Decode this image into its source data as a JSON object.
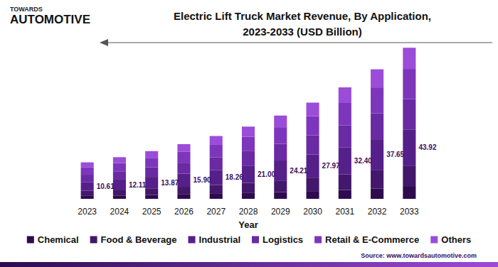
{
  "chart_data": {
    "type": "bar",
    "title": "Electric Lift Truck Market Revenue, By Application,\n2023-2033 (USD Billion)",
    "logo": [
      "TOWARDS",
      "AUTOMOTIVE"
    ],
    "source": "Source: www.towardsautomotive.com",
    "x_label": "Year",
    "categories": [
      "2023",
      "2024",
      "2025",
      "2026",
      "2027",
      "2028",
      "2029",
      "2030",
      "2031",
      "2032",
      "2033"
    ],
    "series": [
      {
        "name": "Chemical",
        "color": "#2d0b4e",
        "values": [
          0.85,
          0.97,
          1.11,
          1.27,
          1.46,
          1.68,
          1.94,
          2.24,
          2.59,
          3.01,
          3.51
        ]
      },
      {
        "name": "Food & Beverage",
        "color": "#43176b",
        "values": [
          1.49,
          1.7,
          1.94,
          2.23,
          2.56,
          2.94,
          3.39,
          3.92,
          4.54,
          5.27,
          6.15
        ]
      },
      {
        "name": "Industrial",
        "color": "#55208a",
        "values": [
          2.55,
          2.91,
          3.33,
          3.82,
          4.38,
          5.04,
          5.81,
          6.71,
          7.78,
          9.04,
          10.54
        ]
      },
      {
        "name": "Logistics",
        "color": "#6a2aa3",
        "values": [
          2.12,
          2.42,
          2.77,
          3.18,
          3.65,
          4.2,
          4.84,
          5.59,
          6.48,
          7.53,
          8.78
        ]
      },
      {
        "name": "Retail & E-Commerce",
        "color": "#7d36bb",
        "values": [
          2.12,
          2.42,
          2.77,
          3.18,
          3.65,
          4.2,
          4.84,
          5.59,
          6.48,
          7.53,
          8.78
        ]
      },
      {
        "name": "Others",
        "color": "#9b4cd8",
        "values": [
          1.48,
          1.69,
          1.95,
          2.22,
          2.56,
          2.94,
          3.39,
          3.92,
          4.53,
          5.27,
          6.16
        ]
      }
    ],
    "totals": [
      10.61,
      12.11,
      13.87,
      15.9,
      18.26,
      21.0,
      24.21,
      27.97,
      32.4,
      37.65,
      43.92
    ],
    "total_labels": [
      "10.61",
      "12.11",
      "13.87",
      "15.90",
      "18.26",
      "21.00",
      "24.21",
      "27.97",
      "32.40",
      "37.65",
      "43.92"
    ],
    "ylim": [
      0,
      45
    ],
    "yticks": [
      0,
      45
    ],
    "stacked": true,
    "grid": false,
    "legend": "bottom",
    "tick_labels": "x"
  }
}
